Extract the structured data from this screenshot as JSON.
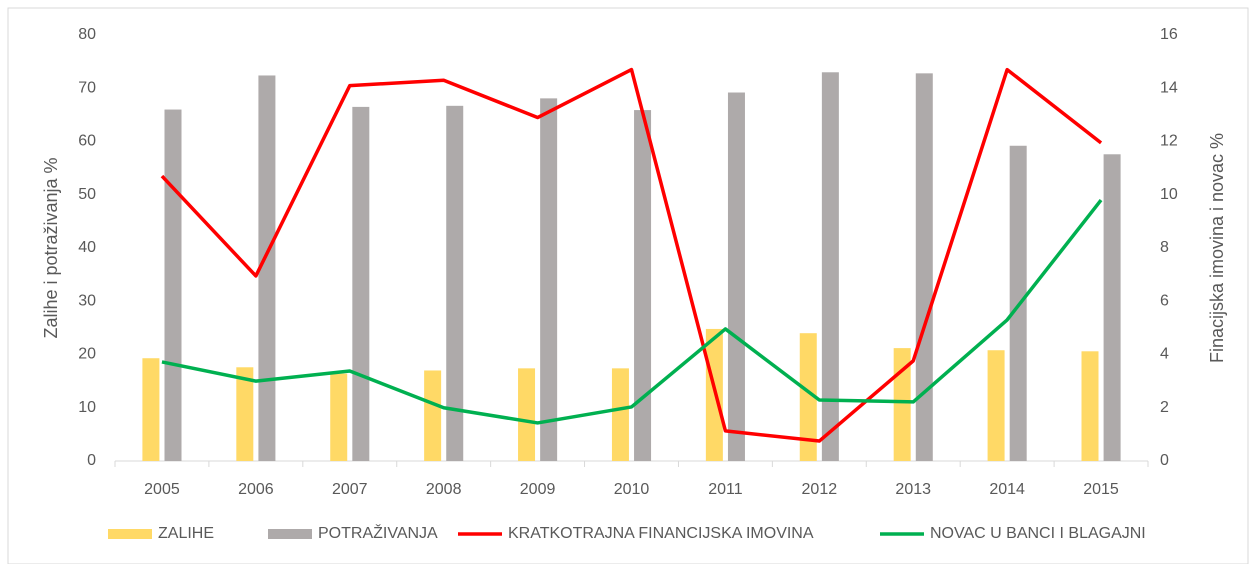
{
  "chart_data": {
    "type": "bar-line",
    "categories": [
      "2005",
      "2006",
      "2007",
      "2008",
      "2009",
      "2010",
      "2011",
      "2012",
      "2013",
      "2014",
      "2015"
    ],
    "y_label": "Zalihe i potraživanja %",
    "y2_label": "Finacijska imovina i novac %",
    "ylim": [
      0,
      80
    ],
    "yticks": [
      0,
      10,
      20,
      30,
      40,
      50,
      60,
      70,
      80
    ],
    "y2lim": [
      0,
      16
    ],
    "y2ticks": [
      0,
      2,
      4,
      6,
      8,
      10,
      12,
      14,
      16
    ],
    "legend": "bottom",
    "series": [
      {
        "name": "ZALIHE",
        "type": "bar",
        "color": "#ffd966",
        "values": [
          19.3,
          17.6,
          16.4,
          17.0,
          17.4,
          17.4,
          24.8,
          24.0,
          21.2,
          20.8,
          20.6
        ]
      },
      {
        "name": "POTRAŽIVANJA",
        "type": "bar",
        "color": "#aeaaaa",
        "values": [
          66.0,
          72.4,
          66.5,
          66.7,
          68.1,
          65.9,
          69.2,
          73.0,
          72.8,
          59.2,
          57.6
        ]
      },
      {
        "name": "KRATKOTRAJNA FINANCIJSKA IMOVINA",
        "type": "line",
        "axis": "y2",
        "color": "#ff0000",
        "values": [
          10.7,
          6.95,
          14.1,
          14.3,
          12.9,
          14.7,
          1.13,
          0.75,
          3.76,
          14.7,
          11.95
        ]
      },
      {
        "name": "NOVAC U BANCI I BLAGAJNI",
        "type": "line",
        "axis": "y2",
        "color": "#00b050",
        "values": [
          3.72,
          3.0,
          3.38,
          2.0,
          1.43,
          2.03,
          4.96,
          2.29,
          2.22,
          5.3,
          9.8
        ]
      }
    ]
  }
}
